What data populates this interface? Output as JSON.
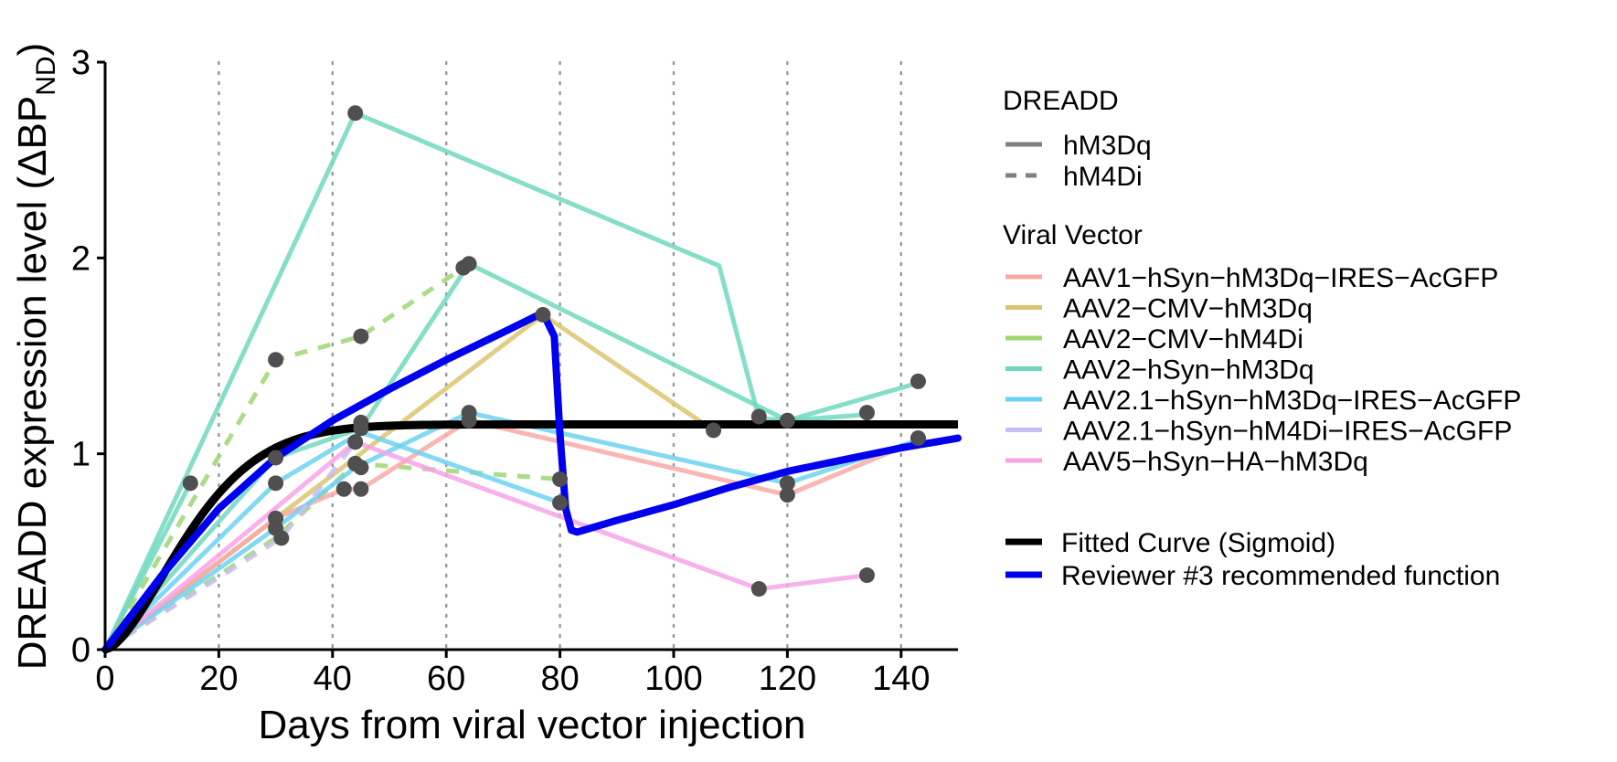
{
  "chart_data": {
    "type": "line",
    "title": "",
    "xlabel": "Days from viral vector injection",
    "ylabel_main": "DREADD expression level (ΔBP",
    "ylabel_sub": "ND",
    "ylabel_close": ")",
    "xlim": [
      0,
      150
    ],
    "ylim": [
      0,
      3
    ],
    "x_ticks": [
      0,
      20,
      40,
      60,
      80,
      100,
      120,
      140
    ],
    "y_ticks": [
      0,
      1,
      2,
      3
    ],
    "vertical_grid": "dotted at x ticks 20-140",
    "legend_position": "right",
    "legend": {
      "dreadd_title": "DREADD",
      "dreadd_items": [
        {
          "label": "hM3Dq",
          "linetype": "solid"
        },
        {
          "label": "hM4Di",
          "linetype": "dashed"
        }
      ],
      "vector_title": "Viral Vector",
      "vector_items": [
        {
          "label": "AAV1−hSyn−hM3Dq−IRES−AcGFP",
          "color": "#F8A9A6"
        },
        {
          "label": "AAV2−CMV−hM3Dq",
          "color": "#DCC46E"
        },
        {
          "label": "AAV2−CMV−hM4Di",
          "color": "#9DD672"
        },
        {
          "label": "AAV2−hSyn−hM3Dq",
          "color": "#6ED8BE"
        },
        {
          "label": "AAV2.1−hSyn−hM3Dq−IRES−AcGFP",
          "color": "#6CD2F0"
        },
        {
          "label": "AAV2.1−hSyn−hM4Di−IRES−AcGFP",
          "color": "#C8BDF2"
        },
        {
          "label": "AAV5−hSyn−HA−hM3Dq",
          "color": "#F7A3E6"
        }
      ],
      "fit_items": [
        {
          "label": "Fitted Curve (Sigmoid)",
          "color": "#000000"
        },
        {
          "label": "Reviewer #3 recommended function",
          "color": "#0000EE"
        }
      ]
    },
    "series": [
      {
        "name": "AAV2−hSyn−hM3Dq",
        "color": "#6ED8BE",
        "linetype": "solid",
        "x": [
          0,
          44,
          108,
          115,
          120,
          144
        ],
        "y": [
          0,
          2.74,
          1.96,
          1.18,
          1.17,
          1.37
        ]
      },
      {
        "name": "AAV2−hSyn−hM3Dq",
        "color": "#6ED8BE",
        "linetype": "solid",
        "x": [
          0,
          15
        ],
        "y": [
          0,
          0.85
        ]
      },
      {
        "name": "AAV2−hSyn−hM3Dq",
        "color": "#6ED8BE",
        "linetype": "solid",
        "x": [
          0,
          30,
          45,
          64,
          120,
          134
        ],
        "y": [
          0,
          0.98,
          1.13,
          1.97,
          1.17,
          1.2
        ]
      },
      {
        "name": "AAV2−CMV−hM4Di",
        "color": "#9DD672",
        "linetype": "dashed",
        "x": [
          0,
          30,
          45,
          63
        ],
        "y": [
          0,
          1.48,
          1.6,
          1.95
        ]
      },
      {
        "name": "AAV2−CMV−hM4Di",
        "color": "#9DD672",
        "linetype": "dashed",
        "x": [
          0,
          30,
          44,
          80
        ],
        "y": [
          0,
          0.57,
          0.95,
          0.87
        ]
      },
      {
        "name": "AAV2−CMV−hM3Dq",
        "color": "#DCC46E",
        "linetype": "solid",
        "x": [
          0,
          30,
          77,
          107
        ],
        "y": [
          0,
          0.67,
          1.71,
          1.12
        ]
      },
      {
        "name": "AAV1−hSyn−hM3Dq−IRES−AcGFP",
        "color": "#F8A9A6",
        "linetype": "solid",
        "x": [
          0,
          30,
          42,
          45,
          64,
          120,
          144
        ],
        "y": [
          0,
          0.67,
          0.82,
          0.82,
          1.17,
          0.79,
          1.08
        ]
      },
      {
        "name": "AAV2.1−hSyn−hM3Dq−IRES−AcGFP",
        "color": "#6CD2F0",
        "linetype": "solid",
        "x": [
          0,
          30,
          44,
          64,
          120,
          144
        ],
        "y": [
          0,
          0.62,
          0.93,
          1.21,
          0.85,
          1.08
        ]
      },
      {
        "name": "AAV2.1−hSyn−hM3Dq−IRES−AcGFP",
        "color": "#6CD2F0",
        "linetype": "solid",
        "x": [
          0,
          30,
          45,
          80
        ],
        "y": [
          0,
          0.85,
          1.11,
          0.75
        ]
      },
      {
        "name": "AAV2.1−hSyn−hM4Di−IRES−AcGFP",
        "color": "#C8BDF2",
        "linetype": "dashed",
        "x": [
          0,
          31,
          44
        ],
        "y": [
          0,
          0.57,
          1.06
        ]
      },
      {
        "name": "AAV5−hSyn−HA−hM3Dq",
        "color": "#F7A3E6",
        "linetype": "solid",
        "x": [
          0,
          44,
          115,
          134
        ],
        "y": [
          0,
          1.06,
          0.31,
          0.38
        ]
      }
    ],
    "points": [
      [
        15,
        0.85
      ],
      [
        30,
        1.48
      ],
      [
        30,
        0.98
      ],
      [
        30,
        0.85
      ],
      [
        30,
        0.67
      ],
      [
        30,
        0.62
      ],
      [
        31,
        0.57
      ],
      [
        42,
        0.82
      ],
      [
        44,
        2.74
      ],
      [
        44,
        1.06
      ],
      [
        44,
        0.95
      ],
      [
        45,
        0.93
      ],
      [
        45,
        1.13
      ],
      [
        45,
        1.16
      ],
      [
        45,
        1.6
      ],
      [
        45,
        0.82
      ],
      [
        63,
        1.95
      ],
      [
        64,
        1.97
      ],
      [
        64,
        1.17
      ],
      [
        64,
        1.21
      ],
      [
        77,
        1.71
      ],
      [
        80,
        0.87
      ],
      [
        80,
        0.75
      ],
      [
        107,
        1.12
      ],
      [
        115,
        1.19
      ],
      [
        115,
        0.31
      ],
      [
        120,
        1.17
      ],
      [
        120,
        0.85
      ],
      [
        120,
        0.79
      ],
      [
        134,
        1.21
      ],
      [
        134,
        0.38
      ],
      [
        143,
        1.37
      ],
      [
        143,
        1.08
      ]
    ],
    "fitted_sigmoid": {
      "name": "Fitted Curve (Sigmoid)",
      "color": "#000000",
      "plateau": 1.15,
      "description": "rises from 0 to ~1.15 plateau by ~day 50"
    },
    "reviewer_function": {
      "name": "Reviewer #3 recommended function",
      "color": "#0000EE",
      "x": [
        0,
        10,
        20,
        30,
        40,
        50,
        60,
        70,
        77,
        79,
        80,
        81,
        82,
        83,
        90,
        100,
        110,
        120,
        130,
        140,
        150
      ],
      "y": [
        0,
        0.38,
        0.72,
        0.98,
        1.17,
        1.33,
        1.48,
        1.62,
        1.72,
        1.6,
        1.1,
        0.72,
        0.61,
        0.6,
        0.66,
        0.74,
        0.83,
        0.91,
        0.97,
        1.03,
        1.08
      ]
    }
  }
}
